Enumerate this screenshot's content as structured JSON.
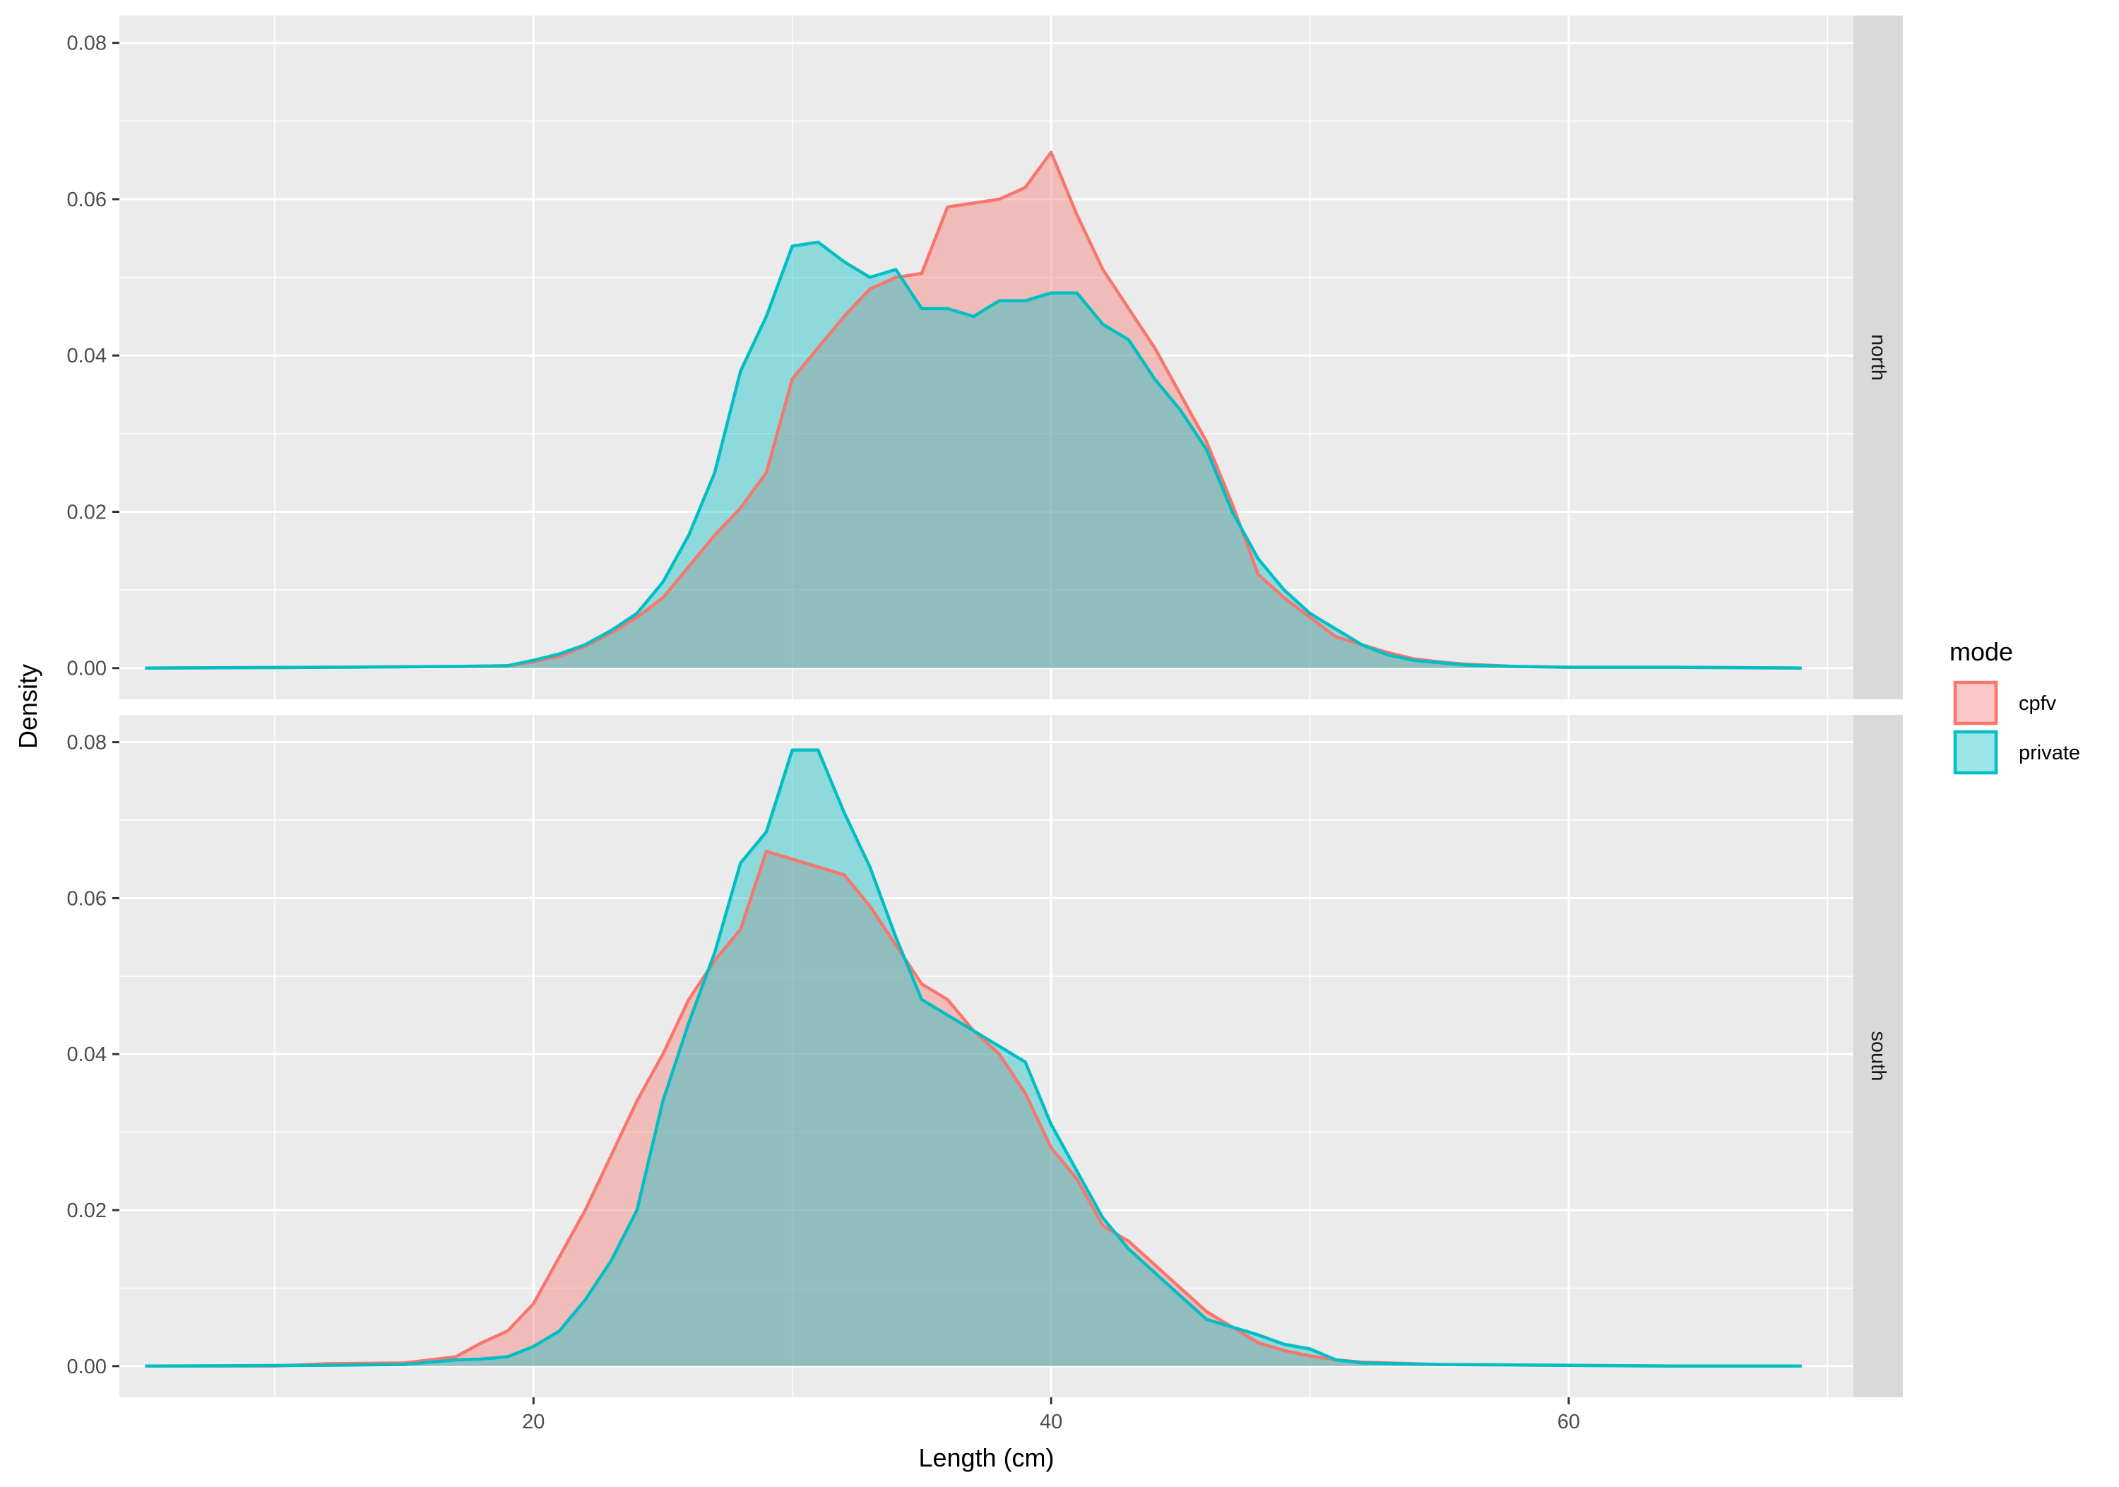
{
  "chart_data": {
    "type": "area",
    "subtype": "density",
    "title": "",
    "xlabel": "Length (cm)",
    "ylabel": "Density",
    "xlim": [
      4,
      71
    ],
    "ylim": [
      -0.004,
      0.0835
    ],
    "x_ticks": [
      20,
      40,
      60
    ],
    "x_tick_labels": [
      "20",
      "40",
      "60"
    ],
    "y_ticks": [
      0,
      0.02,
      0.04,
      0.06,
      0.08
    ],
    "y_tick_labels": [
      "0.00",
      "0.02",
      "0.04",
      "0.06",
      "0.08"
    ],
    "grid": true,
    "facet_variable": "region",
    "legend": {
      "title": "mode",
      "position": "right",
      "entries": [
        {
          "label": "cpfv",
          "color": "#F8766D"
        },
        {
          "label": "private",
          "color": "#00BFC4"
        }
      ]
    },
    "panels": [
      {
        "label": "north",
        "series": [
          {
            "name": "cpfv",
            "color": "#F8766D",
            "points": [
              [
                5,
                0
              ],
              [
                12,
                0.0001
              ],
              [
                17,
                0.0002
              ],
              [
                19,
                0.0003
              ],
              [
                20,
                0.0008
              ],
              [
                21,
                0.0015
              ],
              [
                22,
                0.0028
              ],
              [
                23,
                0.0045
              ],
              [
                24,
                0.0065
              ],
              [
                25,
                0.009
              ],
              [
                26,
                0.013
              ],
              [
                27,
                0.017
              ],
              [
                28,
                0.0205
              ],
              [
                29,
                0.025
              ],
              [
                30,
                0.037
              ],
              [
                31,
                0.041
              ],
              [
                32,
                0.045
              ],
              [
                33,
                0.0485
              ],
              [
                34,
                0.05
              ],
              [
                35,
                0.0505
              ],
              [
                36,
                0.059
              ],
              [
                37,
                0.0595
              ],
              [
                38,
                0.06
              ],
              [
                39,
                0.0615
              ],
              [
                40,
                0.066
              ],
              [
                41,
                0.058
              ],
              [
                42,
                0.051
              ],
              [
                43,
                0.046
              ],
              [
                44,
                0.041
              ],
              [
                45,
                0.035
              ],
              [
                46,
                0.029
              ],
              [
                47,
                0.021
              ],
              [
                48,
                0.012
              ],
              [
                49,
                0.009
              ],
              [
                50,
                0.0065
              ],
              [
                51,
                0.004
              ],
              [
                52,
                0.003
              ],
              [
                53,
                0.002
              ],
              [
                54,
                0.0012
              ],
              [
                55,
                0.0008
              ],
              [
                56,
                0.0005
              ],
              [
                58,
                0.0002
              ],
              [
                60,
                0.0001
              ],
              [
                64,
                0.0001
              ],
              [
                69,
                0
              ]
            ]
          },
          {
            "name": "private",
            "color": "#00BFC4",
            "points": [
              [
                5,
                0
              ],
              [
                12,
                0.0001
              ],
              [
                17,
                0.0002
              ],
              [
                19,
                0.0003
              ],
              [
                20,
                0.001
              ],
              [
                21,
                0.0018
              ],
              [
                22,
                0.003
              ],
              [
                23,
                0.0048
              ],
              [
                24,
                0.007
              ],
              [
                25,
                0.011
              ],
              [
                26,
                0.017
              ],
              [
                27,
                0.025
              ],
              [
                28,
                0.038
              ],
              [
                29,
                0.045
              ],
              [
                30,
                0.054
              ],
              [
                31,
                0.0545
              ],
              [
                32,
                0.052
              ],
              [
                33,
                0.05
              ],
              [
                34,
                0.051
              ],
              [
                35,
                0.046
              ],
              [
                36,
                0.046
              ],
              [
                37,
                0.045
              ],
              [
                38,
                0.047
              ],
              [
                39,
                0.047
              ],
              [
                40,
                0.048
              ],
              [
                41,
                0.048
              ],
              [
                42,
                0.044
              ],
              [
                43,
                0.042
              ],
              [
                44,
                0.037
              ],
              [
                45,
                0.033
              ],
              [
                46,
                0.028
              ],
              [
                47,
                0.02
              ],
              [
                48,
                0.014
              ],
              [
                49,
                0.01
              ],
              [
                50,
                0.007
              ],
              [
                51,
                0.005
              ],
              [
                52,
                0.003
              ],
              [
                53,
                0.0017
              ],
              [
                54,
                0.001
              ],
              [
                55,
                0.0007
              ],
              [
                56,
                0.0004
              ],
              [
                58,
                0.0002
              ],
              [
                60,
                0.0001
              ],
              [
                64,
                0.0001
              ],
              [
                69,
                0
              ]
            ]
          }
        ]
      },
      {
        "label": "south",
        "series": [
          {
            "name": "cpfv",
            "color": "#F8766D",
            "points": [
              [
                5,
                0
              ],
              [
                10,
                0
              ],
              [
                12,
                0.0003
              ],
              [
                15,
                0.0004
              ],
              [
                17,
                0.0012
              ],
              [
                18,
                0.003
              ],
              [
                19,
                0.0045
              ],
              [
                20,
                0.008
              ],
              [
                21,
                0.014
              ],
              [
                22,
                0.02
              ],
              [
                23,
                0.027
              ],
              [
                24,
                0.034
              ],
              [
                25,
                0.04
              ],
              [
                26,
                0.047
              ],
              [
                27,
                0.052
              ],
              [
                28,
                0.056
              ],
              [
                29,
                0.066
              ],
              [
                30,
                0.065
              ],
              [
                31,
                0.064
              ],
              [
                32,
                0.063
              ],
              [
                33,
                0.059
              ],
              [
                34,
                0.054
              ],
              [
                35,
                0.049
              ],
              [
                36,
                0.047
              ],
              [
                37,
                0.043
              ],
              [
                38,
                0.04
              ],
              [
                39,
                0.035
              ],
              [
                40,
                0.028
              ],
              [
                41,
                0.024
              ],
              [
                42,
                0.018
              ],
              [
                43,
                0.016
              ],
              [
                44,
                0.013
              ],
              [
                45,
                0.01
              ],
              [
                46,
                0.007
              ],
              [
                47,
                0.005
              ],
              [
                48,
                0.003
              ],
              [
                49,
                0.002
              ],
              [
                50,
                0.0013
              ],
              [
                51,
                0.0008
              ],
              [
                52,
                0.0005
              ],
              [
                55,
                0.0002
              ],
              [
                60,
                0.0001
              ],
              [
                64,
                0
              ],
              [
                69,
                0
              ]
            ]
          },
          {
            "name": "private",
            "color": "#00BFC4",
            "points": [
              [
                5,
                0
              ],
              [
                12,
                0.0001
              ],
              [
                15,
                0.0002
              ],
              [
                17,
                0.0008
              ],
              [
                18,
                0.0009
              ],
              [
                19,
                0.0012
              ],
              [
                20,
                0.0025
              ],
              [
                21,
                0.0045
              ],
              [
                22,
                0.0085
              ],
              [
                23,
                0.0135
              ],
              [
                24,
                0.02
              ],
              [
                25,
                0.034
              ],
              [
                26,
                0.044
              ],
              [
                27,
                0.053
              ],
              [
                28,
                0.0645
              ],
              [
                29,
                0.0685
              ],
              [
                30,
                0.079
              ],
              [
                31,
                0.079
              ],
              [
                32,
                0.071
              ],
              [
                33,
                0.064
              ],
              [
                34,
                0.055
              ],
              [
                35,
                0.047
              ],
              [
                36,
                0.045
              ],
              [
                37,
                0.043
              ],
              [
                38,
                0.041
              ],
              [
                39,
                0.039
              ],
              [
                40,
                0.031
              ],
              [
                41,
                0.025
              ],
              [
                42,
                0.019
              ],
              [
                43,
                0.015
              ],
              [
                44,
                0.012
              ],
              [
                45,
                0.009
              ],
              [
                46,
                0.006
              ],
              [
                47,
                0.005
              ],
              [
                48,
                0.004
              ],
              [
                49,
                0.0028
              ],
              [
                50,
                0.0022
              ],
              [
                51,
                0.0008
              ],
              [
                52,
                0.0004
              ],
              [
                55,
                0.0002
              ],
              [
                60,
                0.0001
              ],
              [
                64,
                0
              ],
              [
                69,
                0
              ]
            ]
          }
        ]
      }
    ]
  }
}
